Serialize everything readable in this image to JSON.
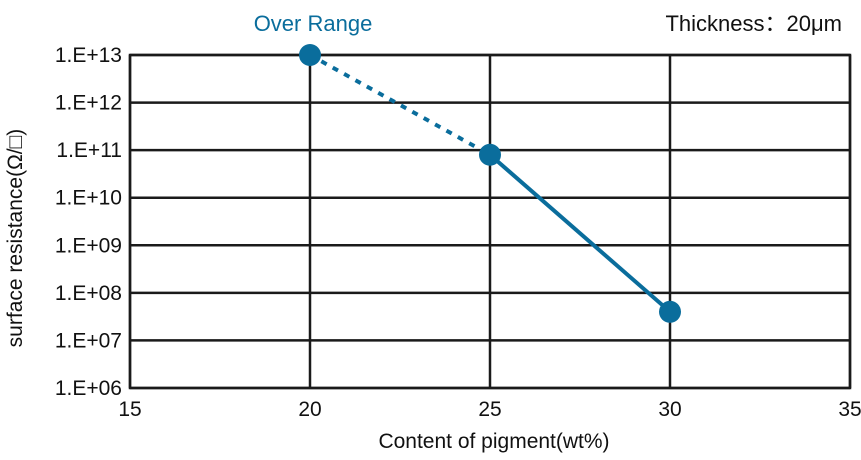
{
  "chart_data": {
    "type": "line",
    "title": "",
    "annotations": {
      "over_range": "Over Range",
      "thickness": "Thickness：20μm"
    },
    "xlabel": "Content of pigment(wt%)",
    "ylabel": "surface resistance(Ω/□)",
    "xlim": [
      15,
      35
    ],
    "ylim_log10": [
      6,
      13
    ],
    "y_scale": "log",
    "x_ticks": [
      "15",
      "20",
      "25",
      "30",
      "35"
    ],
    "y_ticks": [
      "1.E+06",
      "1.E+07",
      "1.E+08",
      "1.E+09",
      "1.E+10",
      "1.E+11",
      "1.E+12",
      "1.E+13"
    ],
    "grid": true,
    "series": [
      {
        "x": [
          20,
          25,
          30
        ],
        "y": [
          10000000000000.0,
          80000000000.0,
          40000000.0
        ],
        "segment_styles": [
          "dotted",
          "solid"
        ]
      }
    ]
  },
  "colors": {
    "series": "#0a6d9c",
    "grid": "#1a1a1a",
    "text": "#111111"
  }
}
